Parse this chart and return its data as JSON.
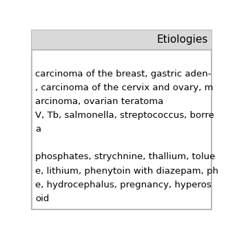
{
  "header": "Etiologies",
  "header_bg": "#d9d9d9",
  "header_fontsize": 11,
  "body_lines": [
    "",
    "carcinoma of the breast, gastric aden-",
    ", carcinoma of the cervix and ovary, m",
    "arcinoma, ovarian teratoma",
    "V, Tb, salmonella, streptococcus, borre",
    "a",
    "",
    "phosphates, strychnine, thallium, tolue",
    "e, lithium, phenytoin with diazepam, ph",
    "e, hydrocephalus, pregnancy, hyperos",
    "oid"
  ],
  "body_fontsize": 9.5,
  "bg_color": "#ffffff",
  "text_color": "#000000",
  "border_color": "#aaaaaa",
  "fig_width": 3.44,
  "fig_height": 3.44
}
